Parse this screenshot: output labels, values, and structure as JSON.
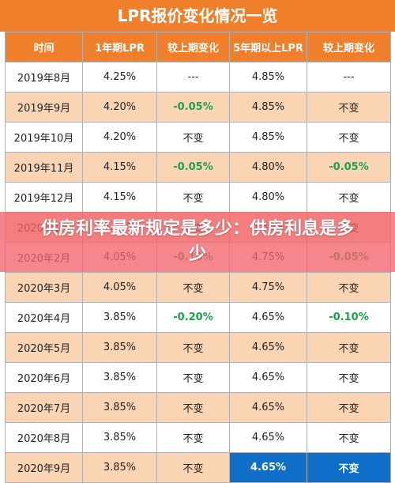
{
  "title": "LPR报价变化情况一览",
  "headers": [
    "时间",
    "1年期LPR",
    "较上期变化",
    "5年期以上LPR",
    "较上期变化"
  ],
  "rows": [
    [
      "2019年8月",
      "4.25%",
      "---",
      "4.85%",
      "---"
    ],
    [
      "2019年9月",
      "4.20%",
      "-0.05%",
      "4.85%",
      "不变"
    ],
    [
      "2019年10月",
      "4.20%",
      "不变",
      "4.85%",
      "不变"
    ],
    [
      "2019年11月",
      "4.15%",
      "-0.05%",
      "4.80%",
      "-0.05%"
    ],
    [
      "2019年12月",
      "4.15%",
      "不变",
      "4.80%",
      "不变"
    ],
    [
      "2020年1月",
      "4.15%",
      "不变",
      "4.80%",
      "不变"
    ],
    [
      "2020年2月",
      "4.05%",
      "-0.10%",
      "4.75%",
      "-0.05%"
    ],
    [
      "2020年3月",
      "4.05%",
      "不变",
      "4.75%",
      "不变"
    ],
    [
      "2020年4月",
      "3.85%",
      "-0.20%",
      "4.65%",
      "-0.10%"
    ],
    [
      "2020年5月",
      "3.85%",
      "不变",
      "4.65%",
      "不变"
    ],
    [
      "2020年6月",
      "3.85%",
      "不变",
      "4.65%",
      "不变"
    ],
    [
      "2020年7月",
      "3.85%",
      "不变",
      "4.65%",
      "不变"
    ],
    [
      "2020年8月",
      "3.85%",
      "不变",
      "4.65%",
      "不变"
    ],
    [
      "2020年9月",
      "3.85%",
      "不变",
      "4.65%",
      "不变"
    ]
  ],
  "banner": "供房利率最新规定是多少：供房利息是多少",
  "colors": {
    "header": "#f07f2b",
    "stripe": "#fbd4b4",
    "decrease": "#1aa34a",
    "highlight": "#0f6ec8",
    "banner": "#f2646e"
  }
}
